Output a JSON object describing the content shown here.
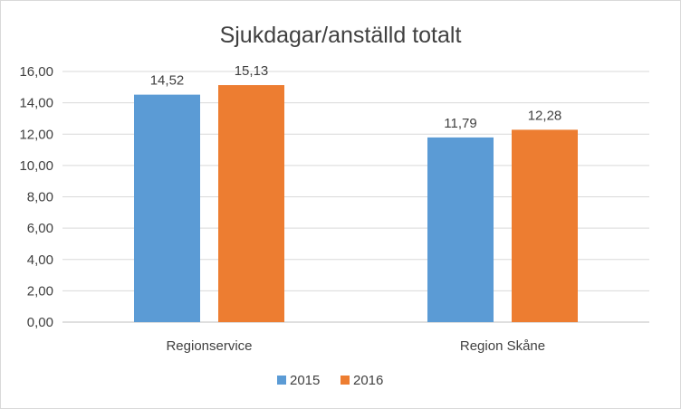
{
  "chart_data": {
    "type": "bar",
    "title": "Sjukdagar/anställd totalt",
    "xlabel": "",
    "ylabel": "",
    "categories": [
      "Regionservice",
      "Region Skåne"
    ],
    "series": [
      {
        "name": "2015",
        "color": "#5b9bd5",
        "values": [
          14.52,
          11.79
        ],
        "labels": [
          "14,52",
          "11,79"
        ]
      },
      {
        "name": "2016",
        "color": "#ed7d31",
        "values": [
          15.13,
          12.28
        ],
        "labels": [
          "15,13",
          "12,28"
        ]
      }
    ],
    "ylim": [
      0,
      16
    ],
    "yticks": [
      0,
      2,
      4,
      6,
      8,
      10,
      12,
      14,
      16
    ],
    "ytick_labels": [
      "0,00",
      "2,00",
      "4,00",
      "6,00",
      "8,00",
      "10,00",
      "12,00",
      "14,00",
      "16,00"
    ],
    "grid": true,
    "legend_position": "bottom"
  }
}
